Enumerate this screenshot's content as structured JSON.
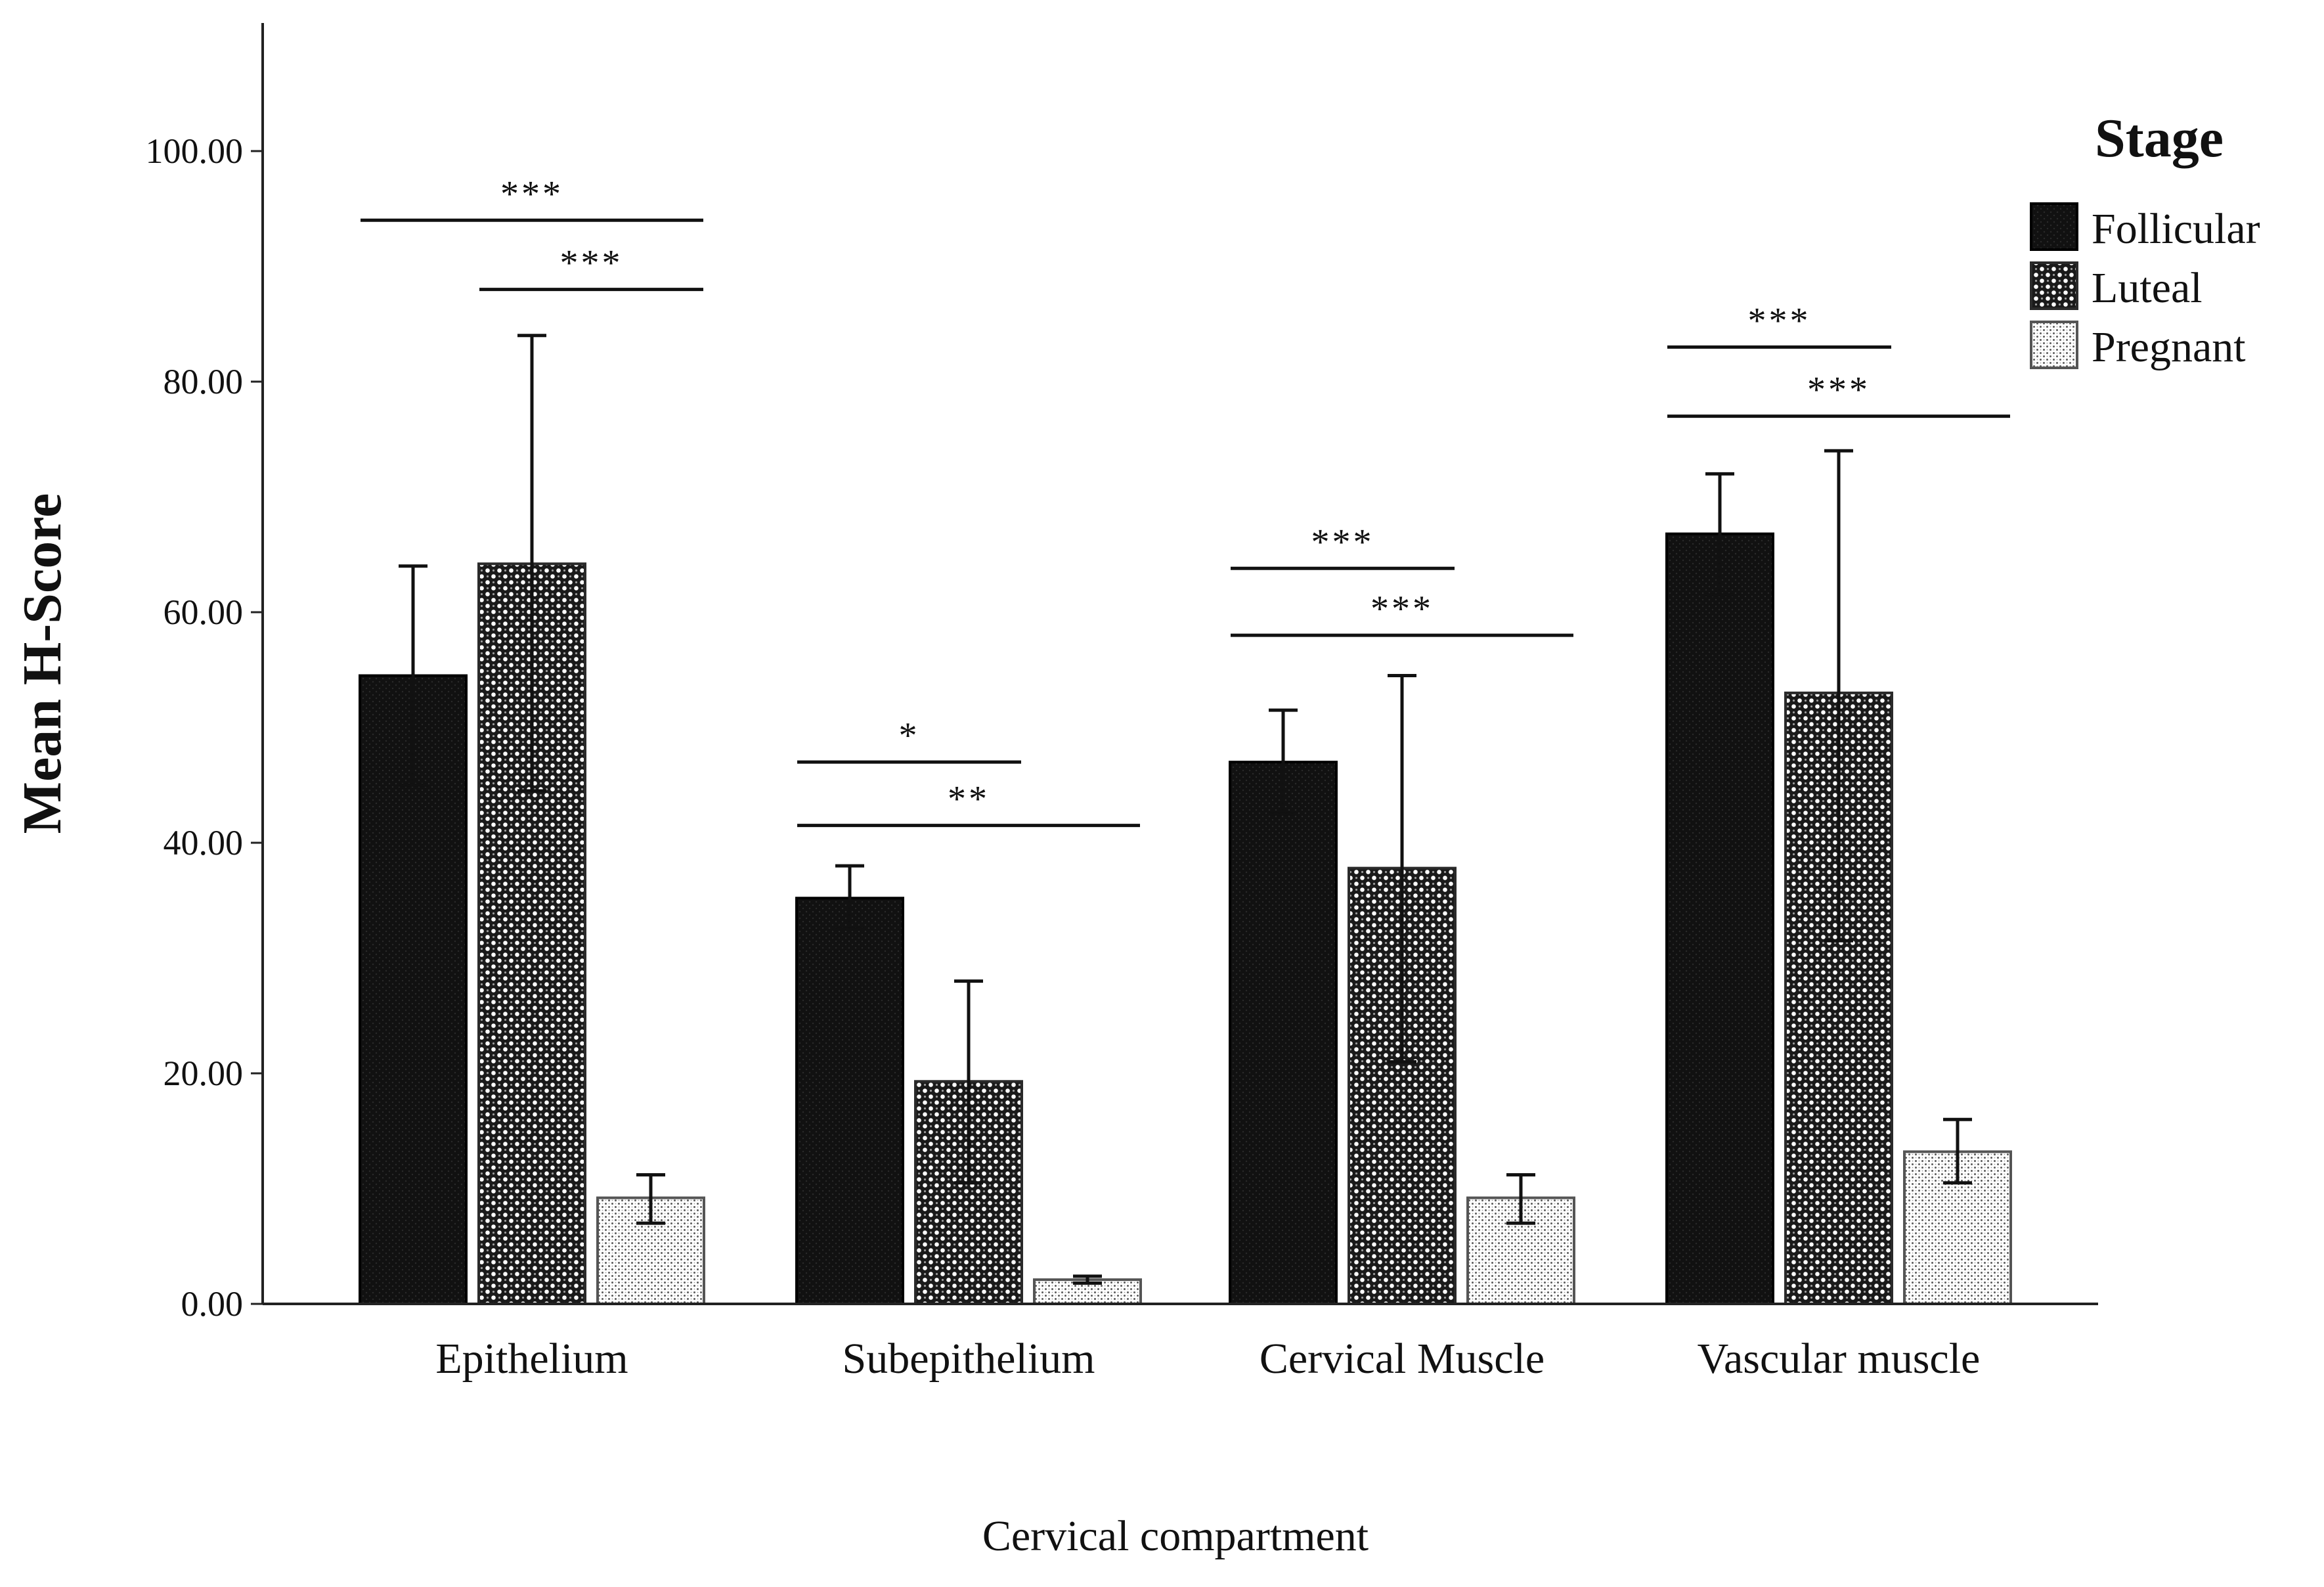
{
  "chart_data": {
    "type": "bar",
    "xlabel": "Cervical compartment",
    "ylabel": "Mean H-Score",
    "ylim": [
      0,
      110
    ],
    "yticks": [
      0,
      20,
      40,
      60,
      80,
      100
    ],
    "ytick_labels": [
      "0.00",
      "20.00",
      "40.00",
      "60.00",
      "80.00",
      "100.00"
    ],
    "categories": [
      "Epithelium",
      "Subepithelium",
      "Cervical Muscle",
      "Vascular muscle"
    ],
    "legend": {
      "title": "Stage",
      "placement": "top-right"
    },
    "series": [
      {
        "name": "Follicular",
        "pattern": "solid-black",
        "values": [
          54.5,
          35.2,
          47.0,
          66.8
        ],
        "error_low": [
          45.0,
          32.5,
          42.5,
          61.5
        ],
        "error_high": [
          64.0,
          38.0,
          51.5,
          72.0
        ]
      },
      {
        "name": "Luteal",
        "pattern": "checkered",
        "values": [
          64.2,
          19.3,
          37.8,
          53.0
        ],
        "error_low": [
          44.5,
          10.5,
          21.0,
          31.5
        ],
        "error_high": [
          84.0,
          28.0,
          54.5,
          74.0
        ]
      },
      {
        "name": "Pregnant",
        "pattern": "dotted",
        "values": [
          9.2,
          2.1,
          9.2,
          13.2
        ],
        "error_low": [
          7.0,
          1.8,
          7.0,
          10.5
        ],
        "error_high": [
          11.2,
          2.4,
          11.2,
          16.0
        ]
      }
    ],
    "significance": [
      {
        "category": "Epithelium",
        "from": "Follicular",
        "to": "Pregnant",
        "y": 94.0,
        "label": "***"
      },
      {
        "category": "Epithelium",
        "from": "Luteal",
        "to": "Pregnant",
        "y": 88.0,
        "label": "***"
      },
      {
        "category": "Subepithelium",
        "from": "Follicular",
        "to": "Luteal",
        "y": 47.0,
        "label": "*"
      },
      {
        "category": "Subepithelium",
        "from": "Follicular",
        "to": "Pregnant",
        "y": 41.5,
        "label": "**"
      },
      {
        "category": "Cervical Muscle",
        "from": "Follicular",
        "to": "Luteal",
        "y": 63.8,
        "label": "***"
      },
      {
        "category": "Cervical Muscle",
        "from": "Follicular",
        "to": "Pregnant",
        "y": 58.0,
        "label": "***"
      },
      {
        "category": "Vascular muscle",
        "from": "Follicular",
        "to": "Luteal",
        "y": 83.0,
        "label": "***"
      },
      {
        "category": "Vascular muscle",
        "from": "Follicular",
        "to": "Pregnant",
        "y": 77.0,
        "label": "***"
      }
    ]
  }
}
